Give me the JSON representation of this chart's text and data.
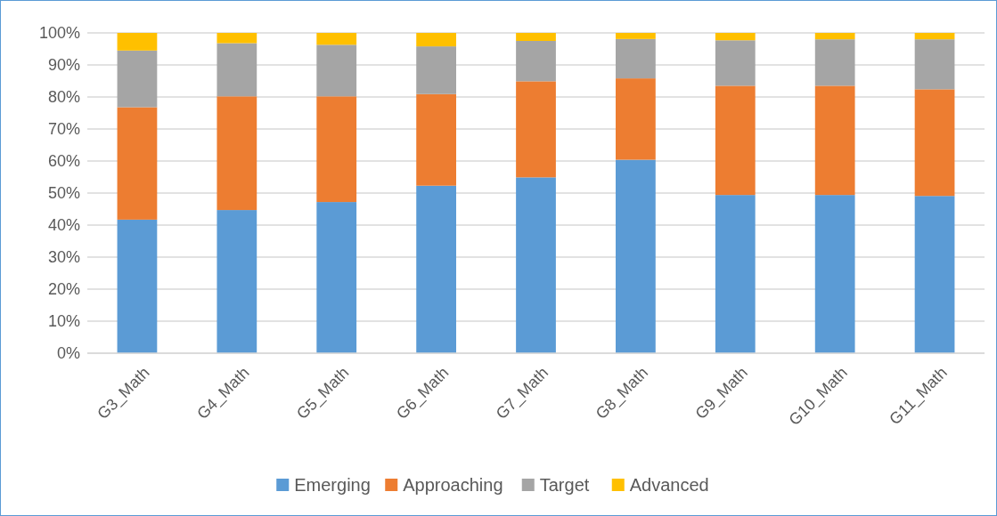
{
  "chart_data": {
    "type": "bar",
    "stacked": true,
    "categories": [
      "G3_Math",
      "G4_Math",
      "G5_Math",
      "G6_Math",
      "G7_Math",
      "G8_Math",
      "G9_Math",
      "G10_Math",
      "G11_Math"
    ],
    "series": [
      {
        "name": "Emerging",
        "color": "#5b9bd5",
        "values": [
          41.7,
          44.7,
          47.2,
          52.3,
          54.9,
          60.4,
          49.4,
          49.4,
          49.1
        ]
      },
      {
        "name": "Approaching",
        "color": "#ed7d31",
        "values": [
          35.1,
          35.5,
          33.0,
          28.6,
          30.0,
          25.4,
          34.1,
          34.1,
          33.3
        ]
      },
      {
        "name": "Target",
        "color": "#a5a5a5",
        "values": [
          17.7,
          16.6,
          16.1,
          14.9,
          12.6,
          12.3,
          14.2,
          14.5,
          15.6
        ]
      },
      {
        "name": "Advanced",
        "color": "#ffc000",
        "values": [
          5.5,
          3.2,
          3.7,
          4.2,
          2.5,
          1.9,
          2.3,
          2.0,
          2.0
        ]
      }
    ],
    "ylim": [
      0,
      100
    ],
    "yticks": [
      {
        "value": 0,
        "label": "0%"
      },
      {
        "value": 10,
        "label": "10%"
      },
      {
        "value": 20,
        "label": "20%"
      },
      {
        "value": 30,
        "label": "30%"
      },
      {
        "value": 40,
        "label": "40%"
      },
      {
        "value": 50,
        "label": "50%"
      },
      {
        "value": 60,
        "label": "60%"
      },
      {
        "value": 70,
        "label": "70%"
      },
      {
        "value": 80,
        "label": "80%"
      },
      {
        "value": 90,
        "label": "90%"
      },
      {
        "value": 100,
        "label": "100%"
      }
    ],
    "grid": "y",
    "legend": "bottom"
  }
}
